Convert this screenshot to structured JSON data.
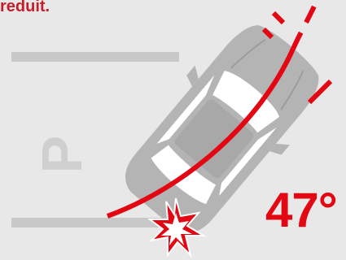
{
  "header": {
    "text": "reduit."
  },
  "parking": {
    "letter": "P"
  },
  "angle": {
    "label": "47°"
  },
  "colors": {
    "accent_red": "#e30613",
    "header_red": "#c41e2a",
    "car_gray": "#b4b4b4",
    "window_white": "#ffffff",
    "background": "#e8e8e8",
    "marking_gray": "#c8c8c8"
  },
  "icons": {
    "collision": "collision-burst-icon",
    "vehicle": "car-top-view-icon"
  }
}
